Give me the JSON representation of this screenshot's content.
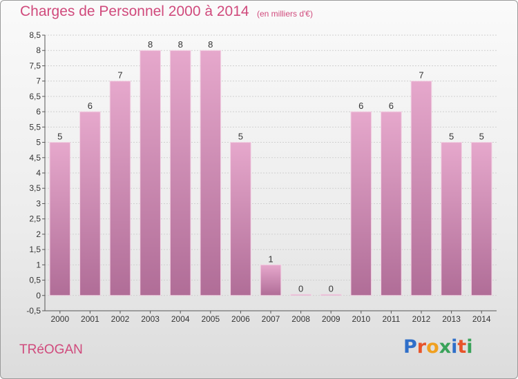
{
  "header": {
    "title": "Charges de Personnel 2000 à 2014",
    "subtitle": "(en milliers d'€)"
  },
  "footer": {
    "commune": "TRéOGAN",
    "logo": [
      "P",
      "r",
      "o",
      "x",
      "i",
      "t",
      "i"
    ],
    "logo_colors": [
      "#2f6fc9",
      "#e8542a",
      "#f0a020",
      "#3aa35a",
      "#2f6fc9",
      "#e8542a",
      "#3aa35a"
    ]
  },
  "colors": {
    "bar_top": "#e6a8cc",
    "bar_bottom": "#b06d97",
    "grid": "#cfcfcf",
    "axis": "#555555"
  },
  "chart_data": {
    "type": "bar",
    "title": "Charges de Personnel 2000 à 2014",
    "subtitle": "(en milliers d'€)",
    "xlabel": "",
    "ylabel": "",
    "categories": [
      "2000",
      "2001",
      "2002",
      "2003",
      "2004",
      "2005",
      "2006",
      "2007",
      "2008",
      "2009",
      "2010",
      "2011",
      "2012",
      "2013",
      "2014"
    ],
    "values": [
      5,
      6,
      7,
      8,
      8,
      8,
      5,
      1,
      0,
      0,
      6,
      6,
      7,
      5,
      5
    ],
    "data_labels": [
      "5",
      "6",
      "7",
      "8",
      "8",
      "8",
      "5",
      "1",
      "0",
      "0",
      "6",
      "6",
      "7",
      "5",
      "5"
    ],
    "ylim": [
      -0.5,
      8.5
    ],
    "yticks": [
      -0.5,
      0,
      0.5,
      1,
      1.5,
      2,
      2.5,
      3,
      3.5,
      4,
      4.5,
      5,
      5.5,
      6,
      6.5,
      7,
      7.5,
      8,
      8.5
    ],
    "ytick_labels": [
      "-0,5",
      "0",
      "0,5",
      "1",
      "1,5",
      "2",
      "2,5",
      "3",
      "3,5",
      "4",
      "4,5",
      "5",
      "5,5",
      "6",
      "6,5",
      "7",
      "7,5",
      "8",
      "8,5"
    ],
    "grid": true,
    "legend": "none"
  }
}
